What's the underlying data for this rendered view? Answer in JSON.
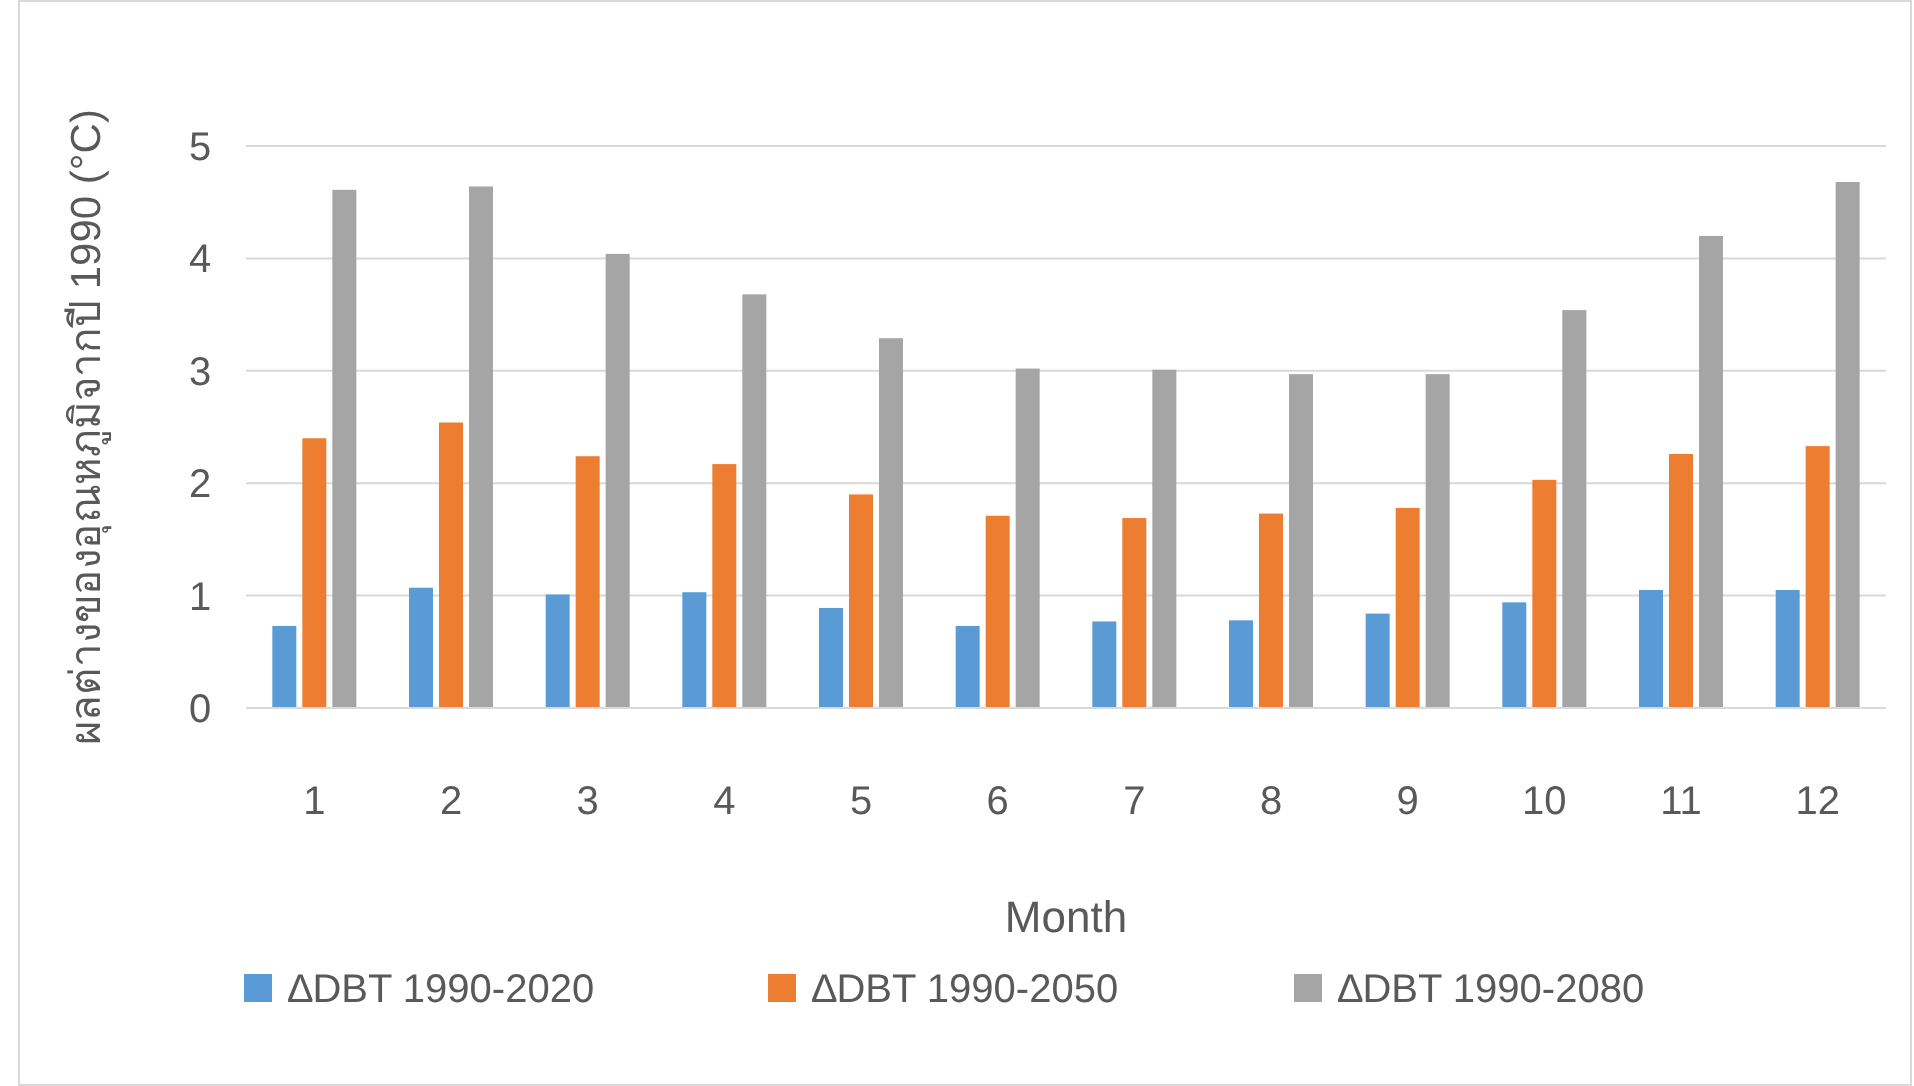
{
  "chart_data": {
    "type": "bar",
    "xlabel": "Month",
    "ylabel": "ผลต่างของอุณหภูมิจากปี 1990 (°C)",
    "categories": [
      "1",
      "2",
      "3",
      "4",
      "5",
      "6",
      "7",
      "8",
      "9",
      "10",
      "11",
      "12"
    ],
    "series": [
      {
        "name": "∆DBT 1990-2020",
        "color": "#5b9bd5",
        "values": [
          0.73,
          1.07,
          1.01,
          1.03,
          0.89,
          0.73,
          0.77,
          0.78,
          0.84,
          0.94,
          1.05,
          1.05
        ]
      },
      {
        "name": "∆DBT 1990-2050",
        "color": "#ed7d31",
        "values": [
          2.4,
          2.54,
          2.24,
          2.17,
          1.9,
          1.71,
          1.69,
          1.73,
          1.78,
          2.03,
          2.26,
          2.33
        ]
      },
      {
        "name": "∆DBT 1990-2080",
        "color": "#a5a5a5",
        "values": [
          4.61,
          4.64,
          4.04,
          3.68,
          3.29,
          3.02,
          3.01,
          2.97,
          2.97,
          3.54,
          4.2,
          4.68
        ]
      }
    ],
    "ylim": [
      0,
      5
    ],
    "yticks": [
      0,
      1,
      2,
      3,
      4,
      5
    ],
    "grid": "y",
    "legend": "bottom"
  }
}
